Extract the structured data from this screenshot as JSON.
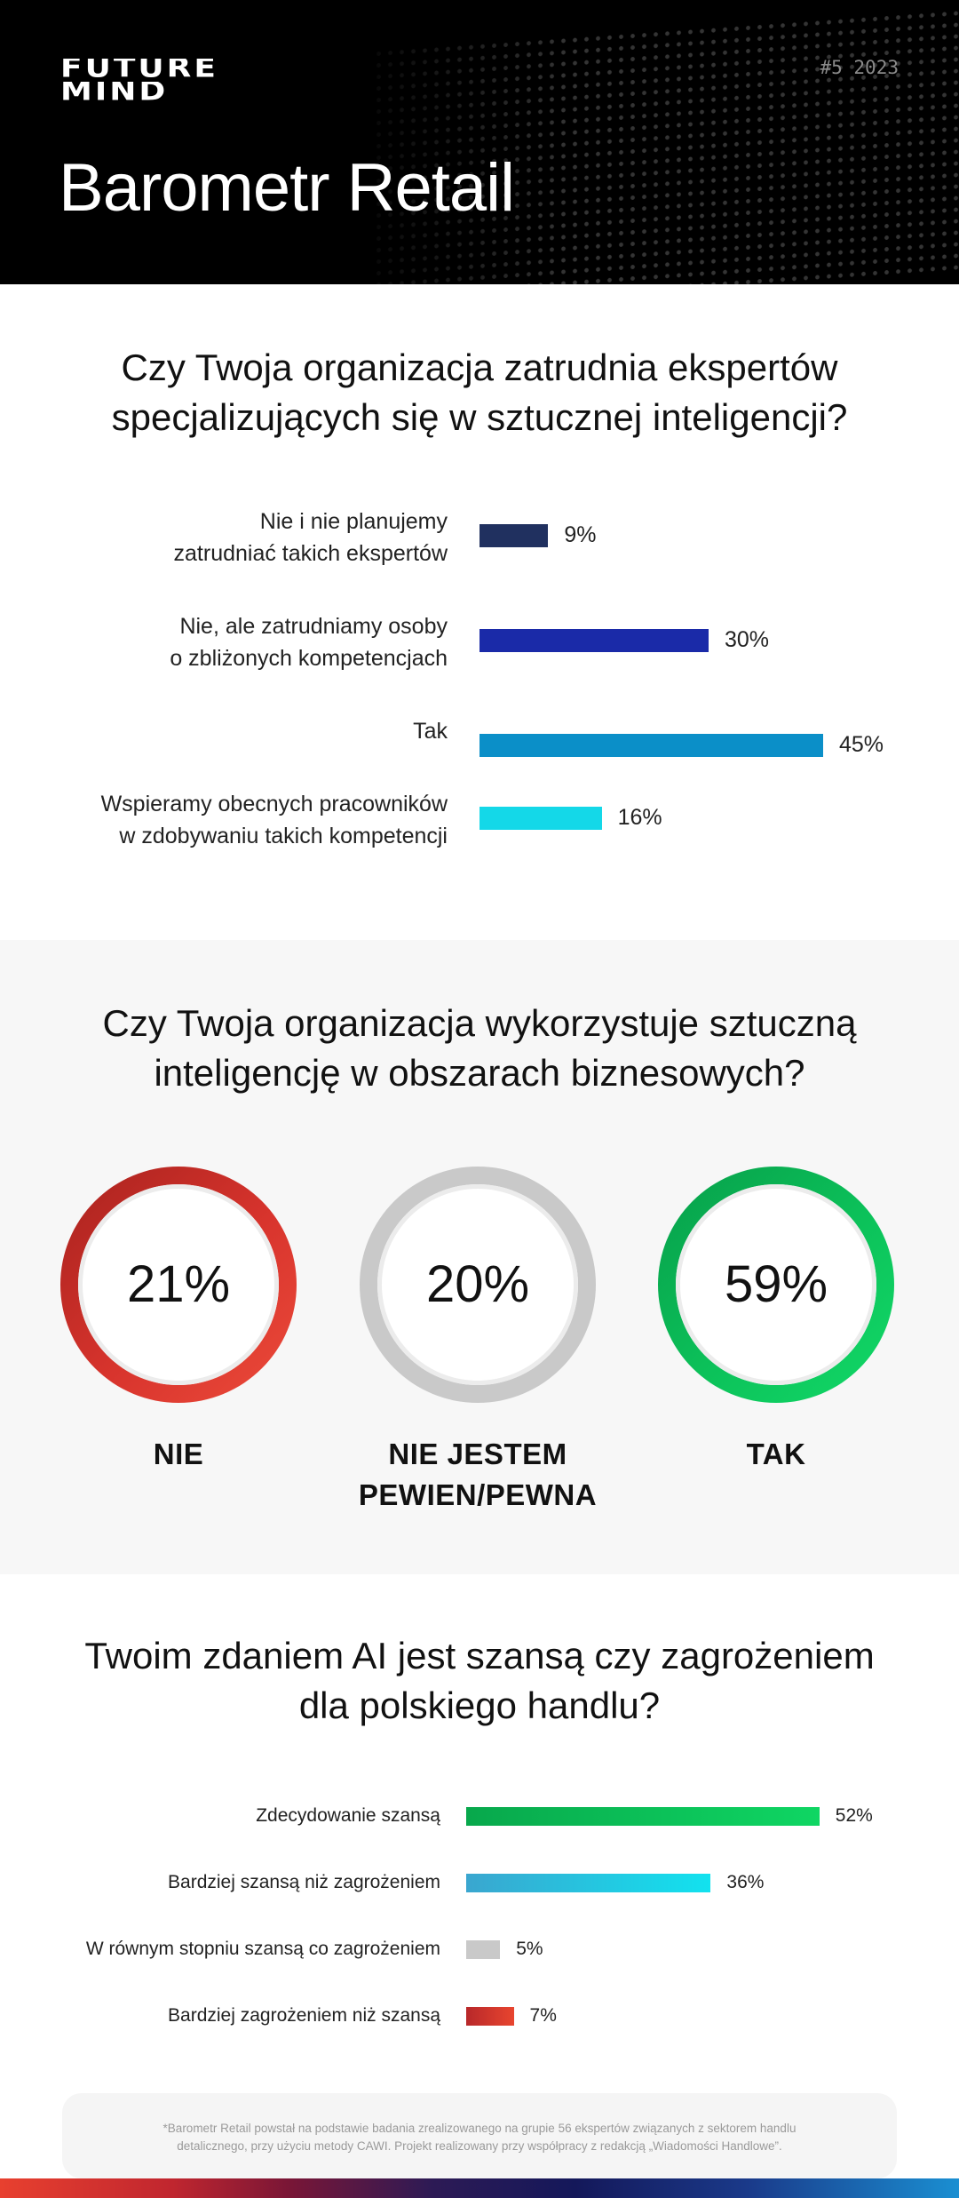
{
  "header": {
    "logo_line1": "FUTURE",
    "logo_line2": "MIND",
    "edition": "#5 2023",
    "title": "Barometr Retail"
  },
  "colors": {
    "navy": "#20305f",
    "blue": "#1a2aa8",
    "cyan_blue": "#0b8fc8",
    "cyan": "#14d8e8",
    "red": "#d8342d",
    "grey": "#c9c9c9",
    "green": "#0cc25a"
  },
  "chart_data": [
    {
      "type": "bar",
      "title": "Czy Twoja organizacja zatrudnia ekspertów specjalizujących się w sztucznej inteligencji?",
      "categories": [
        "Nie i nie planujemy zatrudniać takich ekspertów",
        "Nie, ale zatrudniamy osoby o zbliżonych kompetencjach",
        "Tak",
        "Wspieramy obecnych pracowników w zdobywaniu takich kompetencji"
      ],
      "label_lines": [
        [
          "Nie i nie planujemy",
          "zatrudniać takich ekspertów"
        ],
        [
          "Nie, ale zatrudniamy osoby",
          "o zbliżonych kompetencjach"
        ],
        [
          "Tak"
        ],
        [
          "Wspieramy obecnych pracowników",
          "w zdobywaniu takich kompetencji"
        ]
      ],
      "values": [
        9,
        30,
        45,
        16
      ],
      "value_labels": [
        "9%",
        "30%",
        "45%",
        "16%"
      ],
      "colors": [
        "#20305f",
        "#1a2aa8",
        "#0b8fc8",
        "#14d8e8"
      ]
    },
    {
      "type": "pie",
      "title": "Czy Twoja organizacja wykorzystuje sztuczną inteligencję w obszarach biznesowych?",
      "categories": [
        "NIE",
        "NIE JESTEM PEWIEN/PEWNA",
        "TAK"
      ],
      "label_lines": [
        [
          "NIE"
        ],
        [
          "NIE JESTEM",
          "PEWIEN/PEWNA"
        ],
        [
          "TAK"
        ]
      ],
      "values": [
        21,
        20,
        59
      ],
      "value_labels": [
        "21%",
        "20%",
        "59%"
      ],
      "colors": [
        "#d8342d",
        "#c9c9c9",
        "#0cc25a"
      ]
    },
    {
      "type": "bar",
      "title": "Twoim zdaniem AI jest szansą czy zagrożeniem dla polskiego handlu?",
      "categories": [
        "Zdecydowanie szansą",
        "Bardziej szansą niż zagrożeniem",
        "W równym stopniu szansą co zagrożeniem",
        "Bardziej zagrożeniem niż szansą"
      ],
      "values": [
        52,
        36,
        5,
        7
      ],
      "value_labels": [
        "52%",
        "36%",
        "5%",
        "7%"
      ],
      "colors": [
        "#0cc25a",
        "#1fc3de",
        "#c9c9c9",
        "#d8342d"
      ]
    }
  ],
  "sections": {
    "q1_line1": "Czy Twoja organizacja zatrudnia ekspertów",
    "q1_line2": "specjalizujących się w sztucznej inteligencji?",
    "q2_line1": "Czy Twoja organizacja wykorzystuje sztuczną",
    "q2_line2": "inteligencję w obszarach biznesowych?",
    "q3_line1": "Twoim zdaniem AI jest szansą czy zagrożeniem",
    "q3_line2": "dla polskiego handlu?"
  },
  "footnote": {
    "line1": "*Barometr Retail powstał na podstawie badania zrealizowanego na grupie 56 ekspertów związanych z sektorem handlu",
    "line2": "detalicznego, przy użyciu metody CAWI. Projekt realizowany przy współpracy z redakcją „Wiadomości Handlowe”."
  }
}
